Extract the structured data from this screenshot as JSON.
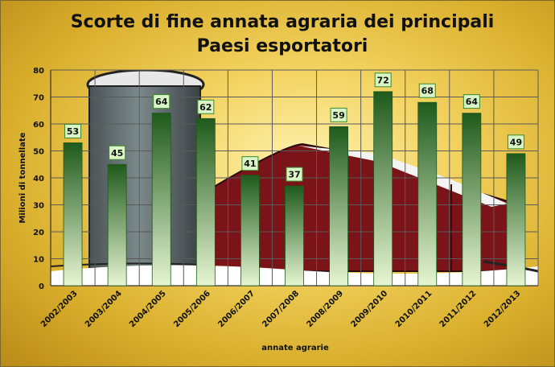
{
  "chart_data": {
    "type": "bar",
    "title": "Scorte di fine annata agraria dei principali Paesi esportatori",
    "xlabel": "annate agrarie",
    "ylabel": "Milioni di tonnellate",
    "ylim": [
      0,
      80
    ],
    "yticks": [
      0,
      10,
      20,
      30,
      40,
      50,
      60,
      70,
      80
    ],
    "grid": true,
    "categories": [
      "2002/2003",
      "2003/2004",
      "2004/2005",
      "2005/2006",
      "2006/2007",
      "2007/2008",
      "2008/2009",
      "2009/2010",
      "2010/2011",
      "2011/2012",
      "2012/2013"
    ],
    "values": [
      53,
      45,
      64,
      62,
      41,
      37,
      59,
      72,
      68,
      64,
      49
    ],
    "colors": {
      "bar_top": "#1f5a1c",
      "bar_bottom": "#e6f6d2",
      "label_bg": "#d9f5c5",
      "label_border": "#3c8a2e"
    }
  }
}
